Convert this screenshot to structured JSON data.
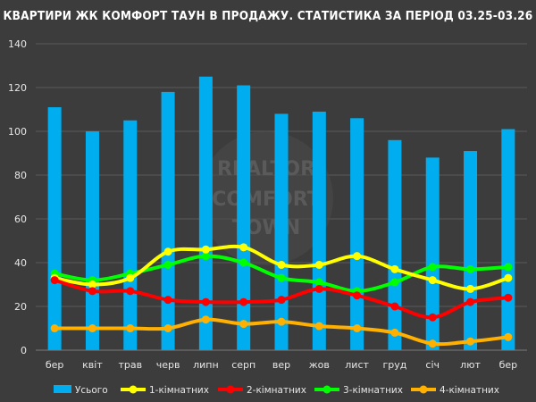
{
  "chart_data": {
    "type": "bar",
    "title": "КВАРТИРИ ЖК КОМФОРТ ТАУН В ПРОДАЖУ. СТАТИСТИКА ЗА ПЕРІОД 03.25-03.26",
    "categories": [
      "бер",
      "квіт",
      "трав",
      "черв",
      "липн",
      "серп",
      "вер",
      "жов",
      "лист",
      "груд",
      "січ",
      "лют",
      "бер"
    ],
    "ylim": [
      0,
      140
    ],
    "yticks": [
      0,
      20,
      40,
      60,
      80,
      100,
      120,
      140
    ],
    "grid": true,
    "legend_position": "bottom",
    "series": [
      {
        "name": "Усього",
        "type": "bar",
        "color": "#00aeef",
        "values": [
          111,
          100,
          105,
          118,
          125,
          121,
          108,
          109,
          106,
          96,
          88,
          91,
          101
        ]
      },
      {
        "name": "1-кімнатних",
        "type": "line",
        "color": "#ffff00",
        "values": [
          33,
          30,
          33,
          45,
          46,
          47,
          39,
          39,
          43,
          37,
          32,
          28,
          33
        ]
      },
      {
        "name": "2-кімнатних",
        "type": "line",
        "color": "#ff0000",
        "values": [
          32,
          27,
          27,
          23,
          22,
          22,
          23,
          28,
          25,
          20,
          15,
          22,
          24
        ]
      },
      {
        "name": "3-кімнатних",
        "type": "line",
        "color": "#00ff00",
        "values": [
          35,
          32,
          35,
          39,
          43,
          40,
          33,
          31,
          27,
          31,
          38,
          37,
          38
        ]
      },
      {
        "name": "4-кімнатних",
        "type": "line",
        "color": "#ffb000",
        "values": [
          10,
          10,
          10,
          10,
          14,
          12,
          13,
          11,
          10,
          8,
          3,
          4,
          6
        ]
      }
    ]
  },
  "watermark": {
    "line1": "REALTOR",
    "line2": "COMFORT",
    "line3": "TOWN"
  }
}
